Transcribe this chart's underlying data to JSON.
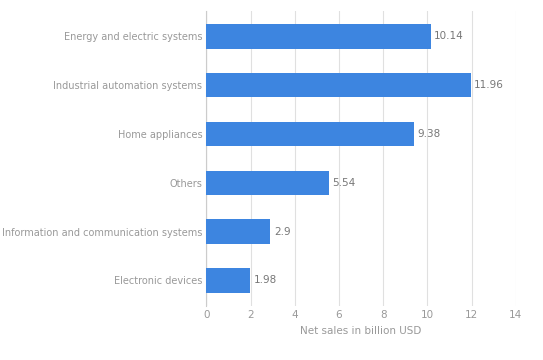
{
  "categories": [
    "Energy and electric systems",
    "Industrial automation systems",
    "Home appliances",
    "Others",
    "Information and communication systems",
    "Electronic devices"
  ],
  "values": [
    10.14,
    11.96,
    9.38,
    5.54,
    2.9,
    1.98
  ],
  "bar_color": "#3d85e0",
  "label_color": "#999999",
  "value_color": "#777777",
  "background_color": "#ffffff",
  "grid_color": "#e0e0e0",
  "xlabel": "Net sales in billion USD",
  "xlim": [
    0,
    14
  ],
  "xticks": [
    0,
    2,
    4,
    6,
    8,
    10,
    12,
    14
  ]
}
